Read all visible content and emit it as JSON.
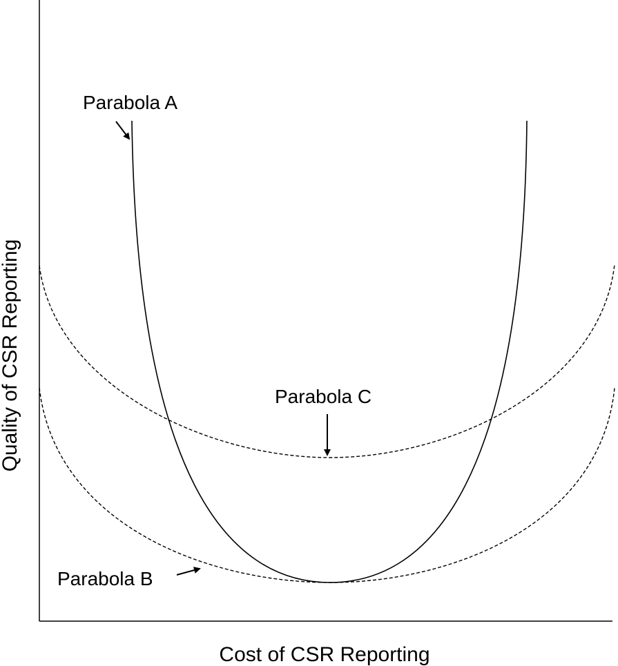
{
  "axes": {
    "x_label": "Cost of CSR Reporting",
    "y_label": "Quality of CSR Reporting"
  },
  "curves": [
    {
      "label": "Parabola A"
    },
    {
      "label": "Parabola B"
    },
    {
      "label": "Parabola C"
    }
  ]
}
